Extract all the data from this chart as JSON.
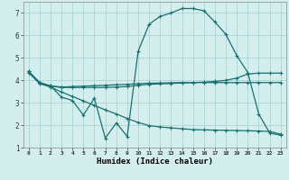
{
  "xlabel": "Humidex (Indice chaleur)",
  "background_color": "#d4eeee",
  "grid_color": "#aad4d4",
  "line_color": "#1a7070",
  "ylim": [
    1,
    7.5
  ],
  "xlim": [
    -0.5,
    23.5
  ],
  "yticks": [
    1,
    2,
    3,
    4,
    5,
    6,
    7
  ],
  "xticks": [
    0,
    1,
    2,
    3,
    4,
    5,
    6,
    7,
    8,
    9,
    10,
    11,
    12,
    13,
    14,
    15,
    16,
    17,
    18,
    19,
    20,
    21,
    22,
    23
  ],
  "series1_x": [
    0,
    1,
    2,
    3,
    4,
    5,
    6,
    7,
    8,
    9,
    10,
    11,
    12,
    13,
    14,
    15,
    16,
    17,
    18,
    19,
    20,
    21,
    22,
    23
  ],
  "series1_y": [
    4.4,
    3.9,
    3.75,
    3.7,
    3.72,
    3.74,
    3.76,
    3.78,
    3.8,
    3.82,
    3.85,
    3.87,
    3.88,
    3.89,
    3.9,
    3.9,
    3.9,
    3.9,
    3.9,
    3.9,
    3.9,
    3.9,
    3.9,
    3.9
  ],
  "series2_x": [
    0,
    1,
    2,
    3,
    4,
    5,
    6,
    7,
    8,
    9,
    10,
    11,
    12,
    13,
    14,
    15,
    16,
    17,
    18,
    19,
    20,
    21,
    22,
    23
  ],
  "series2_y": [
    4.35,
    3.88,
    3.74,
    3.68,
    3.68,
    3.68,
    3.68,
    3.68,
    3.7,
    3.72,
    3.78,
    3.82,
    3.84,
    3.86,
    3.88,
    3.9,
    3.92,
    3.95,
    4.0,
    4.1,
    4.28,
    4.32,
    4.32,
    4.32
  ],
  "series3_x": [
    0,
    1,
    2,
    3,
    4,
    5,
    6,
    7,
    8,
    9,
    10,
    11,
    12,
    13,
    14,
    15,
    16,
    17,
    18,
    19,
    20,
    21,
    22,
    23
  ],
  "series3_y": [
    4.4,
    3.9,
    3.75,
    3.25,
    3.1,
    2.45,
    3.2,
    1.42,
    2.1,
    1.5,
    5.3,
    6.5,
    6.85,
    7.0,
    7.2,
    7.2,
    7.1,
    6.6,
    6.05,
    5.1,
    4.35,
    2.5,
    1.65,
    1.55
  ],
  "series4_x": [
    0,
    1,
    2,
    3,
    4,
    5,
    6,
    7,
    8,
    9,
    10,
    11,
    12,
    13,
    14,
    15,
    16,
    17,
    18,
    19,
    20,
    21,
    22,
    23
  ],
  "series4_y": [
    4.35,
    3.85,
    3.7,
    3.48,
    3.28,
    3.08,
    2.88,
    2.68,
    2.5,
    2.3,
    2.12,
    1.98,
    1.92,
    1.88,
    1.84,
    1.8,
    1.79,
    1.78,
    1.77,
    1.76,
    1.75,
    1.74,
    1.72,
    1.6
  ]
}
